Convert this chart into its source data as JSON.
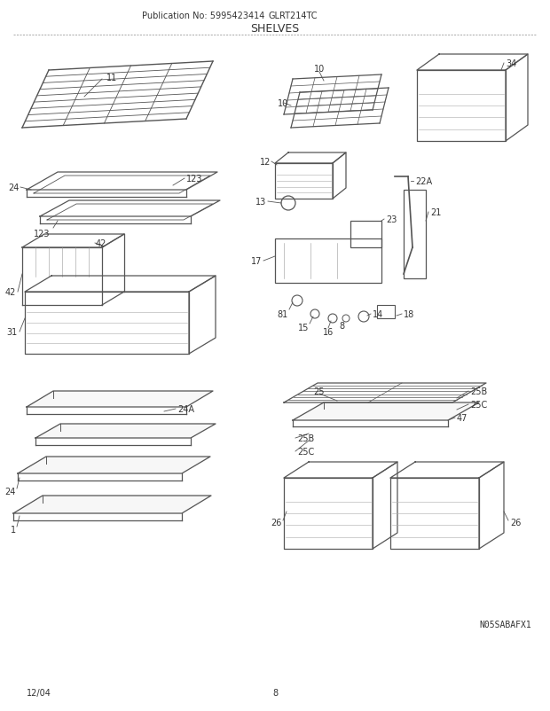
{
  "title": "SHELVES",
  "model": "GLRT214TC",
  "publication": "Publication No: 5995423414",
  "diagram_code": "N05SABAFX1",
  "footer_left": "12/04",
  "footer_center": "8",
  "bg_color": "#ffffff",
  "line_color": "#555555",
  "text_color": "#333333",
  "font_size_title": 9,
  "font_size_label": 7,
  "font_size_footer": 7,
  "font_size_pub": 7
}
